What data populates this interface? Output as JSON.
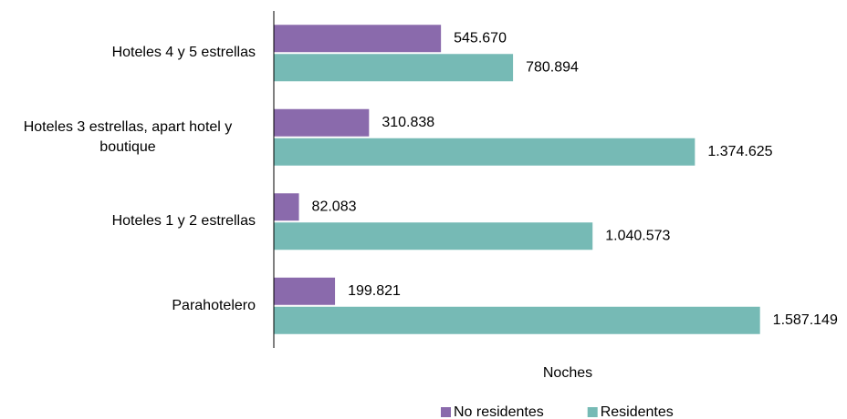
{
  "chart_data": {
    "type": "hbar",
    "x_label": "Noches",
    "categories": [
      "Hoteles 4 y 5 estrellas",
      "Hoteles 3 estrellas, apart hotel y boutique",
      "Hoteles 1 y 2 estrellas",
      "Parahotelero"
    ],
    "series": [
      {
        "name": "No residentes",
        "color": "#8a6aac",
        "values": [
          545670,
          310838,
          82083,
          199821
        ],
        "value_labels": [
          "545.670",
          "310.838",
          "82.083",
          "199.821"
        ]
      },
      {
        "name": "Residentes",
        "color": "#76bab5",
        "values": [
          780894,
          1374625,
          1040573,
          1587149
        ],
        "value_labels": [
          "780.894",
          "1.374.625",
          "1.040.573",
          "1.587.149"
        ]
      }
    ],
    "xlim": [
      0,
      1600000
    ],
    "legend": "bottom"
  }
}
